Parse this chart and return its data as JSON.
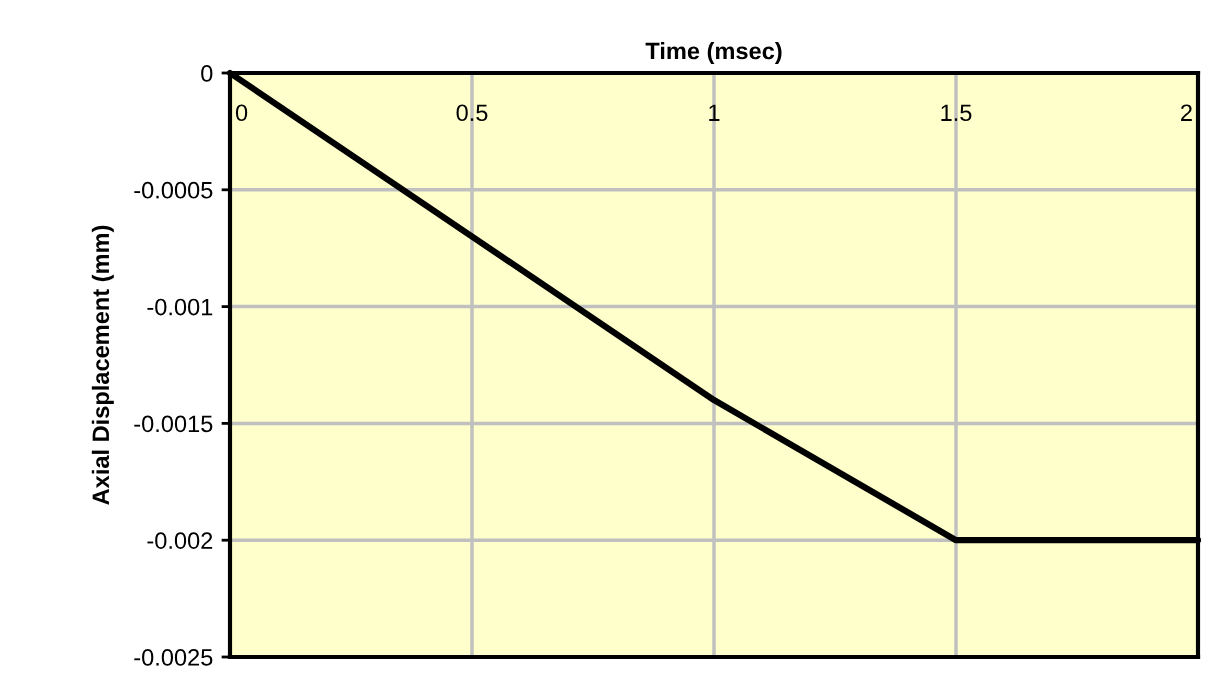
{
  "chart_data": {
    "type": "line",
    "xlabel": "Time (msec)",
    "ylabel": "Axial Displacement (mm)",
    "x": [
      0,
      1,
      1.5,
      2
    ],
    "series": [
      {
        "color": "#000000",
        "values": [
          0,
          -0.0014,
          -0.002,
          -0.002
        ]
      }
    ],
    "xlim": [
      0,
      2
    ],
    "xticks": [
      0,
      0.5,
      1,
      1.5,
      2
    ],
    "ylim": [
      -0.0025,
      0
    ],
    "yticks": [
      0,
      -0.0005,
      -0.001,
      -0.0015,
      -0.002,
      -0.0025
    ],
    "grid": true,
    "marker": "none",
    "line_style": "solid",
    "legend": false
  }
}
